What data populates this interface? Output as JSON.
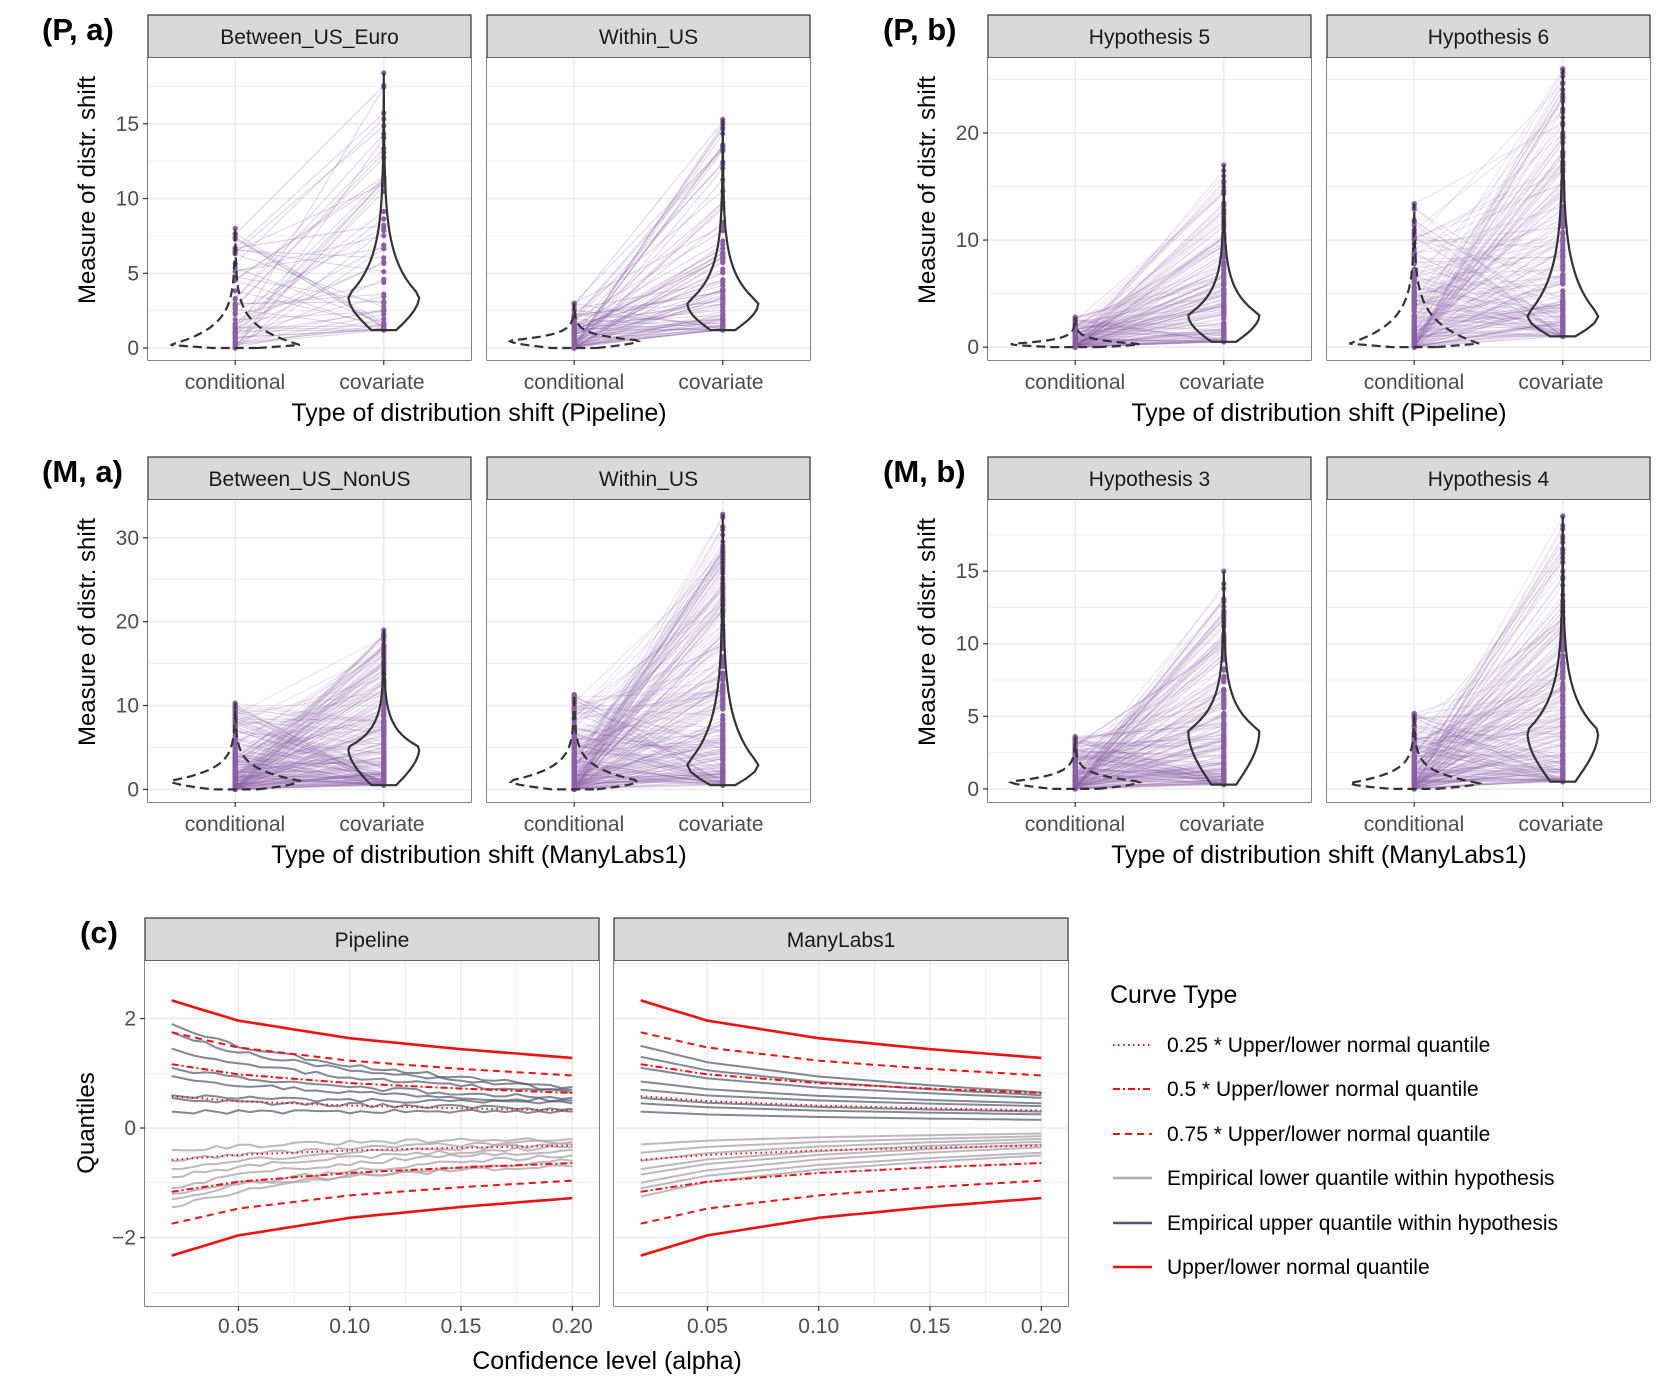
{
  "figure": {
    "panel_p_a": {
      "tag": "(P, a)",
      "facets": [
        "Between_US_Euro",
        "Within_US"
      ],
      "xlabel": "Type of distribution shift (Pipeline)",
      "ylabel": "Measure of distr. shift",
      "categories": [
        "conditional",
        "covariate"
      ]
    },
    "panel_p_b": {
      "tag": "(P, b)",
      "facets": [
        "Hypothesis 5",
        "Hypothesis 6"
      ],
      "xlabel": "Type of distribution shift (Pipeline)",
      "ylabel": "Measure of distr. shift",
      "categories": [
        "conditional",
        "covariate"
      ]
    },
    "panel_m_a": {
      "tag": "(M, a)",
      "facets": [
        "Between_US_NonUS",
        "Within_US"
      ],
      "xlabel": "Type of distribution shift (ManyLabs1)",
      "ylabel": "Measure of distr. shift",
      "categories": [
        "conditional",
        "covariate"
      ]
    },
    "panel_m_b": {
      "tag": "(M, b)",
      "facets": [
        "Hypothesis 3",
        "Hypothesis 4"
      ],
      "xlabel": "Type of distribution shift (ManyLabs1)",
      "ylabel": "Measure of distr. shift",
      "categories": [
        "conditional",
        "covariate"
      ]
    },
    "panel_c": {
      "tag": "(c)",
      "facets": [
        "Pipeline",
        "ManyLabs1"
      ],
      "xlabel": "Confidence level (alpha)",
      "ylabel": "Quantiles"
    },
    "legend": {
      "title": "Curve Type",
      "items": [
        "0.25 * Upper/lower normal quantile",
        "0.5 * Upper/lower normal quantile",
        "0.75 * Upper/lower normal quantile",
        "Empirical lower quantile within hypothesis",
        "Empirical upper quantile within hypothesis",
        "Upper/lower normal quantile"
      ]
    }
  },
  "colors": {
    "purple": "#8a5ea6",
    "violin": "#333333",
    "red": "#ee1111",
    "emp_lower": "#b3aab4",
    "emp_upper": "#4e5668",
    "strip": "#d9d9d9",
    "grid": "#ebebeb"
  },
  "chart_data": [
    {
      "id": "P_a",
      "type": "violin",
      "facets": [
        {
          "name": "Between_US_Euro",
          "ylim": [
            -0.8,
            19.4
          ],
          "ticks": [
            0,
            5,
            10,
            15
          ],
          "conditional": {
            "min": 0,
            "max": 8,
            "mode": 0.2
          },
          "covariate": {
            "min": 1.2,
            "max": 18.4,
            "mode": 3.5
          },
          "n_lines": 60
        },
        {
          "name": "Within_US",
          "ylim": [
            -0.8,
            19.4
          ],
          "ticks": [
            0,
            5,
            10,
            15
          ],
          "conditional": {
            "min": 0,
            "max": 3,
            "mode": 0.5
          },
          "covariate": {
            "min": 1.2,
            "max": 15.3,
            "mode": 3
          },
          "n_lines": 90
        }
      ]
    },
    {
      "id": "P_b",
      "type": "violin",
      "facets": [
        {
          "name": "Hypothesis 5",
          "ylim": [
            -1.2,
            27
          ],
          "ticks": [
            0,
            10,
            20
          ],
          "conditional": {
            "min": 0,
            "max": 2.8,
            "mode": 0.3
          },
          "covariate": {
            "min": 0.5,
            "max": 17,
            "mode": 3
          },
          "n_lines": 160
        },
        {
          "name": "Hypothesis 6",
          "ylim": [
            -1.2,
            27
          ],
          "ticks": [
            0,
            10,
            20
          ],
          "conditional": {
            "min": 0,
            "max": 13.4,
            "mode": 0.3
          },
          "covariate": {
            "min": 1,
            "max": 26,
            "mode": 3
          },
          "n_lines": 200
        }
      ]
    },
    {
      "id": "M_a",
      "type": "violin",
      "facets": [
        {
          "name": "Between_US_NonUS",
          "ylim": [
            -1.5,
            34.5
          ],
          "ticks": [
            0,
            10,
            20,
            30
          ],
          "conditional": {
            "min": 0,
            "max": 10.3,
            "mode": 1
          },
          "covariate": {
            "min": 0.5,
            "max": 19,
            "mode": 5
          },
          "n_lines": 260
        },
        {
          "name": "Within_US",
          "ylim": [
            -1.5,
            34.5
          ],
          "ticks": [
            0,
            10,
            20,
            30
          ],
          "conditional": {
            "min": 0,
            "max": 11.3,
            "mode": 1
          },
          "covariate": {
            "min": 0.5,
            "max": 32.8,
            "mode": 3
          },
          "n_lines": 260
        }
      ]
    },
    {
      "id": "M_b",
      "type": "violin",
      "facets": [
        {
          "name": "Hypothesis 3",
          "ylim": [
            -0.9,
            19.9
          ],
          "ticks": [
            0,
            5,
            10,
            15
          ],
          "conditional": {
            "min": 0,
            "max": 3.6,
            "mode": 0.5
          },
          "covariate": {
            "min": 0.3,
            "max": 15,
            "mode": 4
          },
          "n_lines": 220
        },
        {
          "name": "Hypothesis 4",
          "ylim": [
            -0.9,
            19.9
          ],
          "ticks": [
            0,
            5,
            10,
            15
          ],
          "conditional": {
            "min": 0,
            "max": 5.2,
            "mode": 0.4
          },
          "covariate": {
            "min": 0.5,
            "max": 18.8,
            "mode": 4
          },
          "n_lines": 220
        }
      ]
    },
    {
      "id": "c",
      "type": "line",
      "xlim": [
        0.008,
        0.212
      ],
      "ylim": [
        -3.25,
        3.05
      ],
      "xticks": [
        0.05,
        0.1,
        0.15,
        0.2
      ],
      "xtick_labels": [
        "0.05",
        "0.10",
        "0.15",
        "0.20"
      ],
      "yticks": [
        -2,
        0,
        2
      ],
      "ytick_labels": [
        "−2",
        "0",
        "2"
      ],
      "alpha_range": [
        0.02,
        0.2
      ],
      "normal_quantile": {
        "alpha": [
          0.02,
          0.05,
          0.1,
          0.15,
          0.2
        ],
        "upper": [
          2.33,
          1.96,
          1.64,
          1.44,
          1.28
        ]
      },
      "scaled_multipliers": [
        0.25,
        0.5,
        0.75
      ],
      "facets": [
        {
          "name": "Pipeline",
          "empirical_upper_start_end": [
            [
              1.9,
              0.75
            ],
            [
              1.75,
              0.7
            ],
            [
              1.45,
              0.65
            ],
            [
              1.1,
              0.55
            ],
            [
              0.95,
              0.5
            ],
            [
              0.6,
              0.45
            ],
            [
              0.55,
              0.35
            ],
            [
              0.3,
              0.3
            ]
          ],
          "empirical_lower_start_end": [
            [
              -0.4,
              -0.2
            ],
            [
              -0.6,
              -0.25
            ],
            [
              -0.75,
              -0.3
            ],
            [
              -0.9,
              -0.35
            ],
            [
              -1.1,
              -0.4
            ],
            [
              -1.3,
              -0.5
            ],
            [
              -1.45,
              -0.6
            ],
            [
              -1.2,
              -0.7
            ]
          ]
        },
        {
          "name": "ManyLabs1",
          "empirical_upper_start_end": [
            [
              1.5,
              0.65
            ],
            [
              1.3,
              0.6
            ],
            [
              1.1,
              0.55
            ],
            [
              0.85,
              0.45
            ],
            [
              0.7,
              0.4
            ],
            [
              0.55,
              0.3
            ],
            [
              0.45,
              0.25
            ],
            [
              0.3,
              0.15
            ]
          ],
          "empirical_lower_start_end": [
            [
              -0.3,
              -0.1
            ],
            [
              -0.45,
              -0.15
            ],
            [
              -0.6,
              -0.2
            ],
            [
              -0.75,
              -0.25
            ],
            [
              -0.85,
              -0.3
            ],
            [
              -1.0,
              -0.35
            ],
            [
              -1.1,
              -0.45
            ],
            [
              -1.25,
              -0.5
            ]
          ]
        }
      ]
    }
  ]
}
